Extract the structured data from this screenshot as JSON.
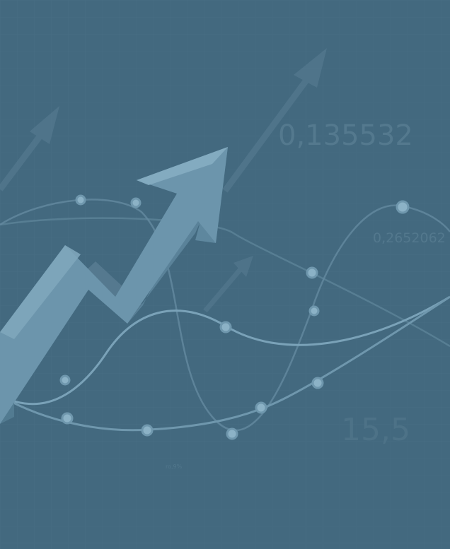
{
  "labels": {
    "number_large": "0,135532",
    "number_small": "0,2652062",
    "number_bottom": "15,5",
    "tiny_note": "ro,9%"
  },
  "colors": {
    "background": "#43697f",
    "grid": "#4d7389",
    "curve": "#6f97ad",
    "arrow_front": "#6d96ad",
    "arrow_side": "#5a8299",
    "arrow_top": "#86adc2",
    "faint_arrow": "#55798f",
    "label": "#55798f"
  }
}
